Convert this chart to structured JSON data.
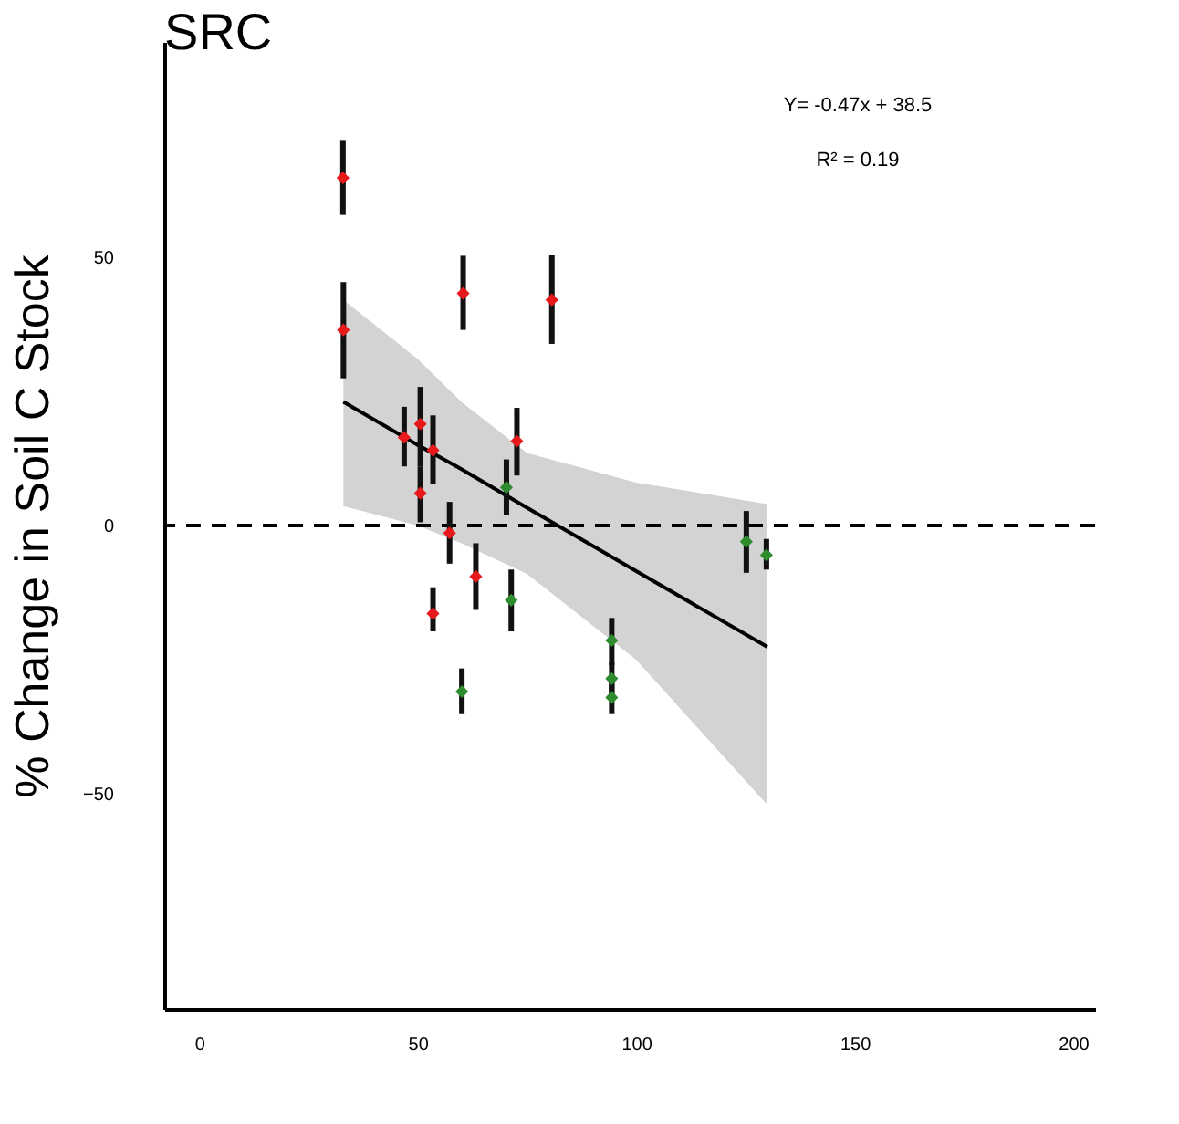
{
  "chart_data": {
    "type": "scatter",
    "title": "SRC",
    "ylabel": "% Change in Soil C Stock",
    "annotations": [
      "Y= -0.47x + 38.5",
      "R² = 0.19"
    ],
    "series": [
      {
        "color": "#e8191a",
        "x": [
          32.9,
          33,
          60.4,
          80.7,
          46.9,
          50.6,
          53.5,
          50.6,
          72.7,
          57.3,
          63.3,
          53.5
        ],
        "values": [
          64.7,
          36.4,
          43.2,
          42.0,
          16.4,
          18.9,
          14.0,
          6.0,
          15.7,
          -1.4,
          -9.5,
          -16.4
        ],
        "errors": [
          [
            57.8,
            71.6
          ],
          [
            27.4,
            45.3
          ],
          [
            36.4,
            50.2
          ],
          [
            33.8,
            50.4
          ],
          [
            11.0,
            22.1
          ],
          [
            11.0,
            25.8
          ],
          [
            7.7,
            20.5
          ],
          [
            0.6,
            11.0
          ],
          [
            9.3,
            21.9
          ],
          [
            -7.1,
            4.4
          ],
          [
            -15.7,
            -3.3
          ],
          [
            -19.7,
            -11.5
          ]
        ]
      },
      {
        "color": "#2e8b2e",
        "x": [
          70.3,
          71.4,
          60.1,
          94.4,
          94.4,
          94.4,
          125.2,
          129.8
        ],
        "values": [
          7.1,
          -13.9,
          -30.9,
          -21.4,
          -28.5,
          -32.0,
          -3.0,
          -5.5
        ],
        "errors": [
          [
            2.0,
            12.3
          ],
          [
            -19.7,
            -8.2
          ],
          [
            -35.1,
            -26.6
          ],
          [
            -26.0,
            -17.2
          ],
          [
            -31.5,
            -25.5
          ],
          [
            -35.1,
            -29.0
          ],
          [
            -8.8,
            2.7
          ],
          [
            -8.2,
            -2.5
          ]
        ]
      },
      {
        "type": "line",
        "marker": "none",
        "color": "#000000",
        "x": [
          33,
          50,
          60,
          75,
          100,
          130
        ],
        "values": [
          23,
          15,
          10.5,
          3.3,
          -8.5,
          -22.6
        ],
        "lower": [
          3.6,
          0,
          -3.3,
          -9,
          -25,
          -52
        ],
        "upper": [
          42,
          31,
          23,
          13.5,
          8,
          4
        ]
      }
    ],
    "xlim": [
      -8,
      205
    ],
    "xticks": [
      0,
      50,
      100,
      150,
      200
    ],
    "ylim": [
      -90,
      90
    ],
    "yticks": [
      -50,
      0,
      50
    ],
    "ref_lines": [
      {
        "axis": "y",
        "value": 0,
        "line_style": "dashed",
        "color": "#000000"
      }
    ],
    "marker": "diamond",
    "grid": false
  }
}
